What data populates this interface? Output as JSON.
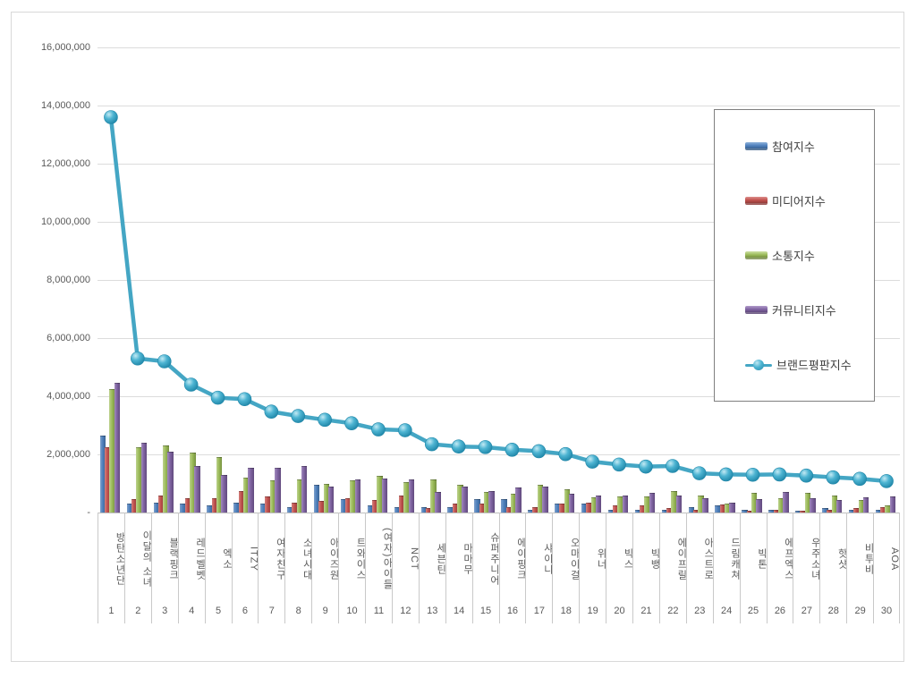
{
  "chart_data": {
    "type": "bar",
    "subtype": "grouped-bars-with-line-overlay",
    "title": "",
    "grid": true,
    "legend_position": "right-overlay",
    "categories": [
      "방탄소년단",
      "이달의 소녀",
      "블랙핑크",
      "레드벨벳",
      "엑소",
      "ITZY",
      "여자친구",
      "소녀시대",
      "아이즈원",
      "트와이스",
      "(여자)아이들",
      "NCT",
      "세븐틴",
      "마마무",
      "슈퍼주니어",
      "에이핑크",
      "샤이니",
      "오마이걸",
      "위너",
      "빅스",
      "빅뱅",
      "에이프릴",
      "아스트로",
      "드림캐쳐",
      "빅톤",
      "에프엑스",
      "우주소녀",
      "핫샷",
      "비투비",
      "AOA"
    ],
    "ranks": [
      "1",
      "2",
      "3",
      "4",
      "5",
      "6",
      "7",
      "8",
      "9",
      "10",
      "11",
      "12",
      "13",
      "14",
      "15",
      "16",
      "17",
      "18",
      "19",
      "20",
      "21",
      "22",
      "23",
      "24",
      "25",
      "26",
      "27",
      "28",
      "29",
      "30"
    ],
    "y_axis": {
      "min": 0,
      "max": 16000000,
      "step": 2000000,
      "tick_labels": [
        "-",
        "2,000,000",
        "4,000,000",
        "6,000,000",
        "8,000,000",
        "10,000,000",
        "12,000,000",
        "14,000,000",
        "16,000,000"
      ]
    },
    "series": [
      {
        "name": "참여지수",
        "key": "participation-index",
        "type": "bar",
        "color": "#4F81BD",
        "values": [
          2650000,
          300000,
          350000,
          300000,
          250000,
          350000,
          300000,
          200000,
          950000,
          450000,
          250000,
          200000,
          200000,
          200000,
          450000,
          450000,
          100000,
          300000,
          300000,
          100000,
          100000,
          80000,
          180000,
          250000,
          80000,
          100000,
          50000,
          150000,
          100000,
          100000
        ]
      },
      {
        "name": "미디어지수",
        "key": "media-index",
        "type": "bar",
        "color": "#C0504D",
        "values": [
          2250000,
          450000,
          600000,
          500000,
          500000,
          750000,
          550000,
          350000,
          400000,
          500000,
          420000,
          600000,
          150000,
          300000,
          300000,
          200000,
          200000,
          300000,
          350000,
          250000,
          250000,
          150000,
          80000,
          280000,
          50000,
          80000,
          60000,
          80000,
          160000,
          200000
        ]
      },
      {
        "name": "소통지수",
        "key": "communication-index",
        "type": "bar",
        "color": "#9BBB59",
        "values": [
          4250000,
          2250000,
          2300000,
          2050000,
          1900000,
          1200000,
          1100000,
          1150000,
          980000,
          1100000,
          1250000,
          1050000,
          1150000,
          950000,
          700000,
          650000,
          950000,
          800000,
          520000,
          550000,
          550000,
          750000,
          580000,
          300000,
          680000,
          480000,
          680000,
          580000,
          420000,
          250000
        ]
      },
      {
        "name": "커뮤니티지수",
        "key": "community-index",
        "type": "bar",
        "color": "#8064A2",
        "values": [
          4450000,
          2400000,
          2100000,
          1600000,
          1300000,
          1550000,
          1550000,
          1600000,
          900000,
          1150000,
          1180000,
          1150000,
          700000,
          880000,
          750000,
          850000,
          880000,
          650000,
          600000,
          600000,
          680000,
          580000,
          500000,
          330000,
          450000,
          720000,
          480000,
          420000,
          520000,
          550000
        ]
      },
      {
        "name": "브랜드평판지수",
        "key": "brand-reputation-index",
        "type": "line",
        "color": "#4BACC6",
        "values": [
          13600000,
          5300000,
          5200000,
          4400000,
          3950000,
          3900000,
          3470000,
          3320000,
          3190000,
          3070000,
          2860000,
          2830000,
          2350000,
          2270000,
          2250000,
          2160000,
          2110000,
          2010000,
          1750000,
          1650000,
          1580000,
          1600000,
          1350000,
          1310000,
          1300000,
          1310000,
          1270000,
          1210000,
          1160000,
          1080000
        ]
      }
    ]
  }
}
